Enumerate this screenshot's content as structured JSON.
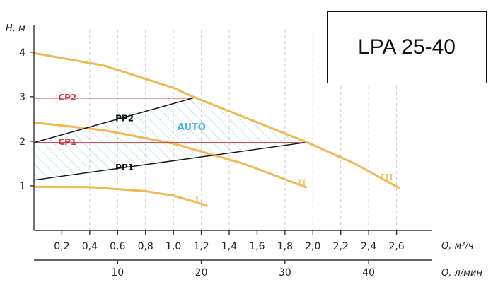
{
  "model_label": "LPA 25-40",
  "chart_data": {
    "type": "line",
    "title": "",
    "xlabel": "Q, м³/ч",
    "x2label": "Q, л/мин",
    "ylabel": "H, м",
    "xlim": [
      0,
      2.8
    ],
    "ylim": [
      0,
      4.6
    ],
    "xticks": [
      0.2,
      0.4,
      0.6,
      0.8,
      1.0,
      1.2,
      1.4,
      1.6,
      1.8,
      2.0,
      2.2,
      2.4,
      2.6
    ],
    "xtick_labels": [
      "0,2",
      "0,4",
      "0,6",
      "0,8",
      "1,0",
      "1,2",
      "1,4",
      "1,6",
      "1,8",
      "2,0",
      "2,2",
      "2,4",
      "2,6"
    ],
    "x2ticks": [
      10,
      20,
      30,
      40
    ],
    "x2tick_labels": [
      "10",
      "20",
      "30",
      "40"
    ],
    "yticks": [
      1,
      2,
      3,
      4
    ],
    "ytick_labels": [
      "1",
      "2",
      "3",
      "4"
    ],
    "colors": {
      "curve": "#f0b850",
      "curve_label": "#f0c878",
      "constant_pressure": "#d2343c",
      "proportional_pressure": "#111111",
      "auto": "#4fb3d9",
      "hatch": "#8fcbe6",
      "axis": "#333333",
      "grid": "#cccccc"
    },
    "series": [
      {
        "name": "I",
        "kind": "speed",
        "label_at": [
          1.17,
          0.62
        ],
        "points": [
          [
            0,
            0.98
          ],
          [
            0.4,
            0.97
          ],
          [
            0.8,
            0.88
          ],
          [
            1.0,
            0.78
          ],
          [
            1.2,
            0.6
          ],
          [
            1.24,
            0.55
          ]
        ]
      },
      {
        "name": "II",
        "kind": "speed",
        "label_at": [
          1.92,
          1.0
        ],
        "points": [
          [
            0,
            2.42
          ],
          [
            0.5,
            2.25
          ],
          [
            1.0,
            1.95
          ],
          [
            1.5,
            1.5
          ],
          [
            1.95,
            0.97
          ]
        ]
      },
      {
        "name": "III",
        "kind": "speed",
        "label_at": [
          2.53,
          1.12
        ],
        "points": [
          [
            0,
            3.98
          ],
          [
            0.5,
            3.7
          ],
          [
            1.0,
            3.2
          ],
          [
            1.14,
            3.0
          ],
          [
            1.5,
            2.55
          ],
          [
            1.94,
            2.0
          ],
          [
            2.3,
            1.5
          ],
          [
            2.62,
            0.95
          ]
        ]
      },
      {
        "name": "CP2",
        "kind": "constant",
        "label_at": [
          0.24,
          2.92
        ],
        "points": [
          [
            0,
            2.97
          ],
          [
            1.14,
            2.97
          ]
        ]
      },
      {
        "name": "CP1",
        "kind": "constant",
        "label_at": [
          0.24,
          1.92
        ],
        "points": [
          [
            0,
            1.97
          ],
          [
            1.94,
            1.97
          ]
        ]
      },
      {
        "name": "PP2",
        "kind": "proportional",
        "label_at": [
          0.65,
          2.45
        ],
        "points": [
          [
            0,
            1.97
          ],
          [
            1.14,
            2.97
          ]
        ]
      },
      {
        "name": "PP1",
        "kind": "proportional",
        "label_at": [
          0.65,
          1.35
        ],
        "points": [
          [
            0,
            1.13
          ],
          [
            1.94,
            1.97
          ]
        ]
      }
    ],
    "auto_region": {
      "label": "AUTO",
      "label_at": [
        1.13,
        2.25
      ],
      "boundary": [
        [
          0,
          1.13
        ],
        [
          0,
          1.97
        ],
        [
          1.14,
          2.97
        ],
        [
          1.5,
          2.55
        ],
        [
          1.94,
          1.97
        ]
      ]
    },
    "grid": true,
    "legend": "none"
  }
}
